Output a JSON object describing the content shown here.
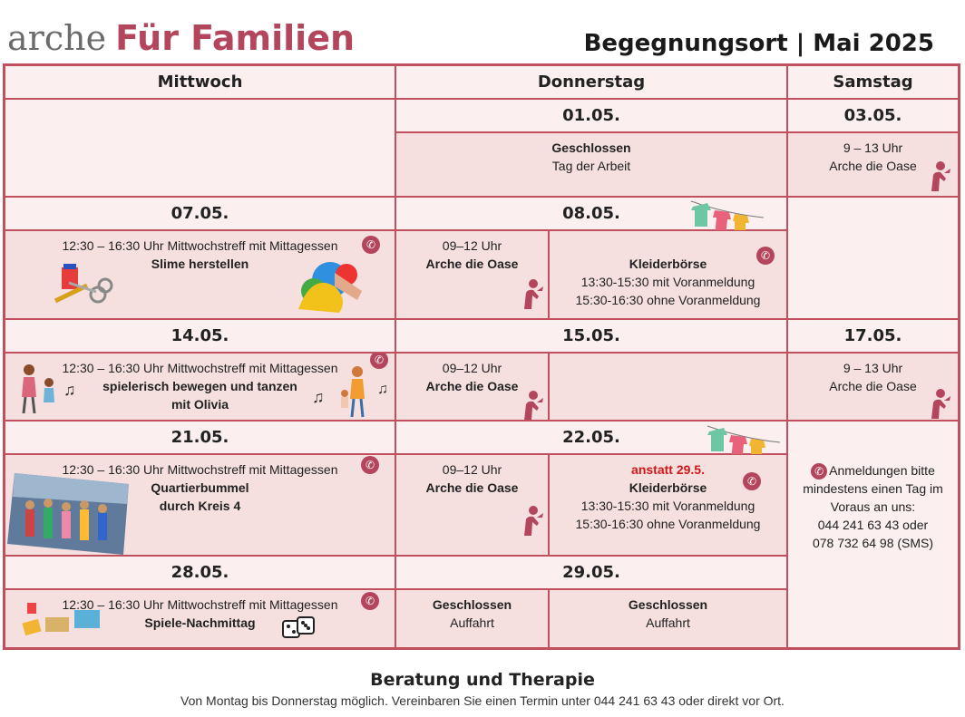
{
  "header": {
    "logo_arche": "arche",
    "logo_familien": "Für Familien",
    "title": "Begegnungsort | Mai 2025"
  },
  "days": {
    "wed": "Mittwoch",
    "thu": "Donnerstag",
    "sat": "Samstag"
  },
  "week1": {
    "thu_date": "01.05.",
    "thu_line1": "Geschlossen",
    "thu_line2": "Tag der Arbeit",
    "sat_date": "03.05.",
    "sat_line1": "9 – 13 Uhr",
    "sat_line2": "Arche die Oase"
  },
  "week2": {
    "wed_date": "07.05.",
    "wed_line1": "12:30 – 16:30  Uhr Mittwochstreff mit Mittagessen",
    "wed_line2": "Slime herstellen",
    "thu_date": "08.05.",
    "thu_a_line1": "09–12 Uhr",
    "thu_a_line2": "Arche die Oase",
    "thu_b_line1": "Kleiderbörse",
    "thu_b_line2": "13:30-15:30 mit Voranmeldung",
    "thu_b_line3": "15:30-16:30 ohne Voranmeldung"
  },
  "week3": {
    "wed_date": "14.05.",
    "wed_line1": "12:30 – 16:30  Uhr Mittwochstreff mit Mittagessen",
    "wed_line2": "spielerisch bewegen und tanzen",
    "wed_line3": "mit Olivia",
    "thu_date": "15.05.",
    "thu_a_line1": "09–12 Uhr",
    "thu_a_line2": "Arche die Oase",
    "sat_date": "17.05.",
    "sat_line1": "9 – 13 Uhr",
    "sat_line2": "Arche die Oase"
  },
  "week4": {
    "wed_date": "21.05.",
    "wed_line1": "12:30 – 16:30  Uhr Mittwochstreff mit Mittagessen",
    "wed_line2": "Quartierbummel",
    "wed_line3": "durch Kreis 4",
    "thu_date": "22.05.",
    "thu_a_line1": "09–12 Uhr",
    "thu_a_line2": "Arche die Oase",
    "thu_b_note": "anstatt 29.5.",
    "thu_b_line1": "Kleiderbörse",
    "thu_b_line2": "13:30-15:30 mit Voranmeldung",
    "thu_b_line3": "15:30-16:30 ohne Voranmeldung"
  },
  "week5": {
    "wed_date": "28.05.",
    "wed_line1": "12:30 – 16:30  Uhr Mittwochstreff mit Mittagessen",
    "wed_line2": "Spiele-Nachmittag",
    "thu_date": "29.05.",
    "thu_a_line1": "Geschlossen",
    "thu_a_line2": "Auffahrt",
    "thu_b_line1": "Geschlossen",
    "thu_b_line2": "Auffahrt"
  },
  "notice": {
    "line1": "Anmeldungen bitte",
    "line2": "mindestens einen Tag im",
    "line3": "Voraus an uns:",
    "line4": "044 241 63 43 oder",
    "line5": "078 732 64 98 (SMS)"
  },
  "footer": {
    "title": "Beratung und Therapie",
    "text": "Von Montag bis Donnerstag möglich. Vereinbaren Sie einen Termin unter 044 241 63 43 oder direkt vor Ort."
  },
  "icons": {
    "phone": "phone-icon",
    "person": "person-arrow-icon"
  },
  "colors": {
    "accent": "#c0505d",
    "dark_cell": "#f5dfdf",
    "light_cell": "#fbeff0",
    "brand": "#b3465c"
  }
}
